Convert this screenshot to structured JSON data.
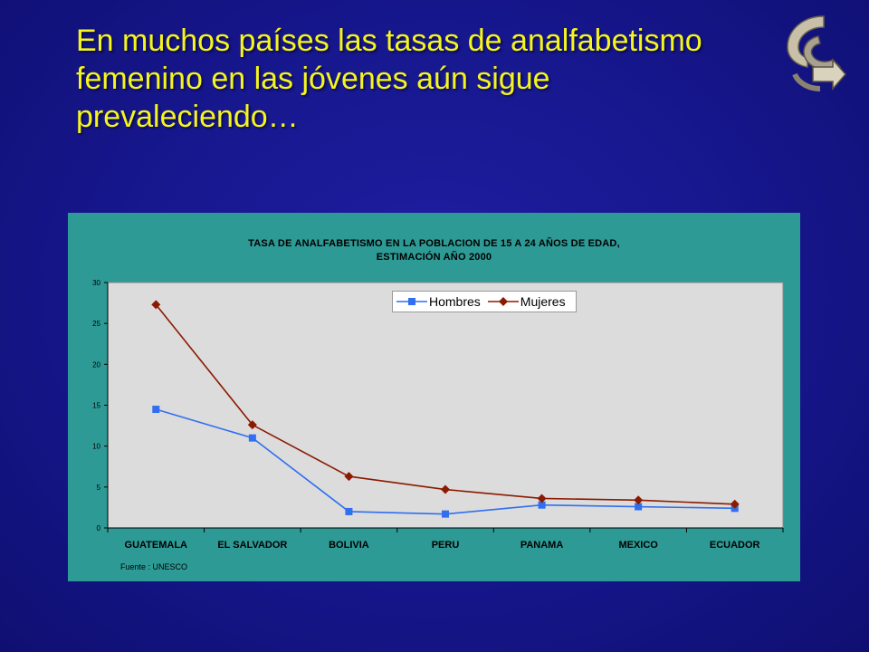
{
  "slide": {
    "title": "En muchos países las tasas de analfabetismo\nfemenino en las jóvenes  aún sigue\nprevaleciendo…"
  },
  "icons": {
    "logo": "curved-arrow-logo-icon"
  },
  "chart_data": {
    "type": "line",
    "title": "TASA DE ANALFABETISMO EN LA POBLACION DE 15 A 24 AÑOS DE EDAD,\nESTIMACIÓN AÑO 2000",
    "categories": [
      "GUATEMALA",
      "EL SALVADOR",
      "BOLIVIA",
      "PERU",
      "PANAMA",
      "MEXICO",
      "ECUADOR"
    ],
    "series": [
      {
        "name": "Hombres",
        "values": [
          14.5,
          11.0,
          2.0,
          1.7,
          2.8,
          2.6,
          2.4
        ],
        "color": "#2f6ff0",
        "marker": "square"
      },
      {
        "name": "Mujeres",
        "values": [
          27.3,
          12.6,
          6.3,
          4.7,
          3.6,
          3.4,
          2.9
        ],
        "color": "#8b1a00",
        "marker": "diamond"
      }
    ],
    "yticks": [
      0,
      5,
      10,
      15,
      20,
      25,
      30
    ],
    "ylim": [
      0,
      30
    ],
    "grid": false,
    "legend_position": "top-center",
    "source": "Fuente : UNESCO",
    "plot_background": "#dcdcdc",
    "frame_background": "#2d9a95"
  }
}
